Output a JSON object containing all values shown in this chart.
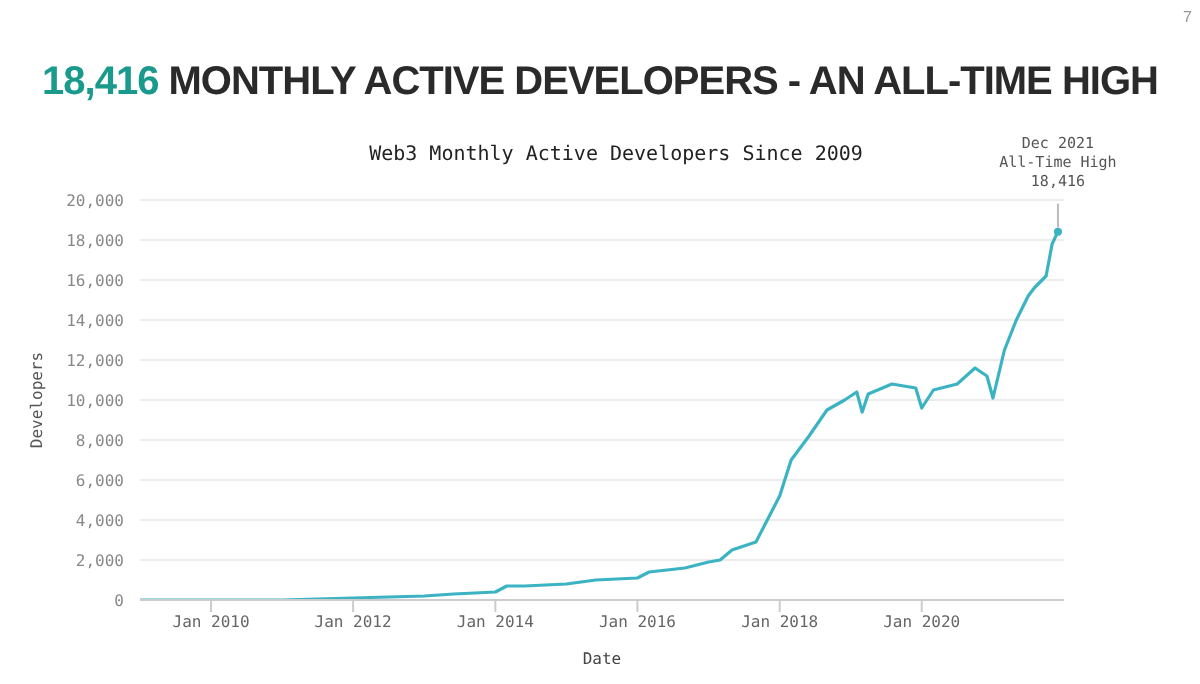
{
  "chart_data": {
    "type": "line",
    "title": "18,416 MONTHLY ACTIVE DEVELOPERS - AN ALL-TIME HIGH",
    "subtitle": "Web3 Monthly Active Developers Since 2009",
    "xlabel": "Date",
    "ylabel": "Developers",
    "x": [
      "2009-01",
      "2010-01",
      "2011-01",
      "2012-01",
      "2013-01",
      "2013-06",
      "2014-01",
      "2014-03",
      "2014-06",
      "2015-01",
      "2015-06",
      "2016-01",
      "2016-03",
      "2016-09",
      "2017-01",
      "2017-03",
      "2017-05",
      "2017-09",
      "2018-01",
      "2018-03",
      "2018-06",
      "2018-09",
      "2018-12",
      "2019-02",
      "2019-03",
      "2019-04",
      "2019-08",
      "2019-12",
      "2020-01",
      "2020-03",
      "2020-07",
      "2020-10",
      "2020-12",
      "2021-01",
      "2021-03",
      "2021-05",
      "2021-07",
      "2021-08",
      "2021-10",
      "2021-11",
      "2021-12"
    ],
    "series": [
      {
        "color": "#3bb3c3",
        "values": [
          0,
          0,
          0,
          100,
          200,
          300,
          400,
          700,
          700,
          800,
          1000,
          1100,
          1400,
          1600,
          1900,
          2000,
          2500,
          2900,
          5200,
          7000,
          8200,
          9500,
          10000,
          10400,
          9400,
          10300,
          10800,
          10600,
          9600,
          10500,
          10800,
          11600,
          11200,
          10100,
          12500,
          14000,
          15200,
          15600,
          16200,
          17800,
          18416
        ]
      }
    ],
    "xlim": [
      "2009-01",
      "2022-01"
    ],
    "xticks": [
      {
        "value": "2010-01",
        "label": "Jan 2010"
      },
      {
        "value": "2012-01",
        "label": "Jan 2012"
      },
      {
        "value": "2014-01",
        "label": "Jan 2014"
      },
      {
        "value": "2016-01",
        "label": "Jan 2016"
      },
      {
        "value": "2018-01",
        "label": "Jan 2018"
      },
      {
        "value": "2020-01",
        "label": "Jan 2020"
      }
    ],
    "ylim": [
      0,
      20000
    ],
    "yticks": [
      0,
      {
        "value": 2000,
        "label": "2,000"
      },
      {
        "value": 4000,
        "label": "4,000"
      },
      {
        "value": 6000,
        "label": "6,000"
      },
      {
        "value": 8000,
        "label": "8,000"
      },
      {
        "value": 10000,
        "label": "10,000"
      },
      {
        "value": 12000,
        "label": "12,000"
      },
      {
        "value": 14000,
        "label": "14,000"
      },
      {
        "value": 16000,
        "label": "16,000"
      },
      {
        "value": 18000,
        "label": "18,000"
      },
      {
        "value": 20000,
        "label": "20,000"
      }
    ],
    "grid": "y",
    "marker": "none",
    "line_style": "solid",
    "annotations": [
      {
        "text": "Dec 2021\nAll-Time High\n18,416",
        "x": "2021-12",
        "y": 18416
      },
      "7"
    ]
  }
}
